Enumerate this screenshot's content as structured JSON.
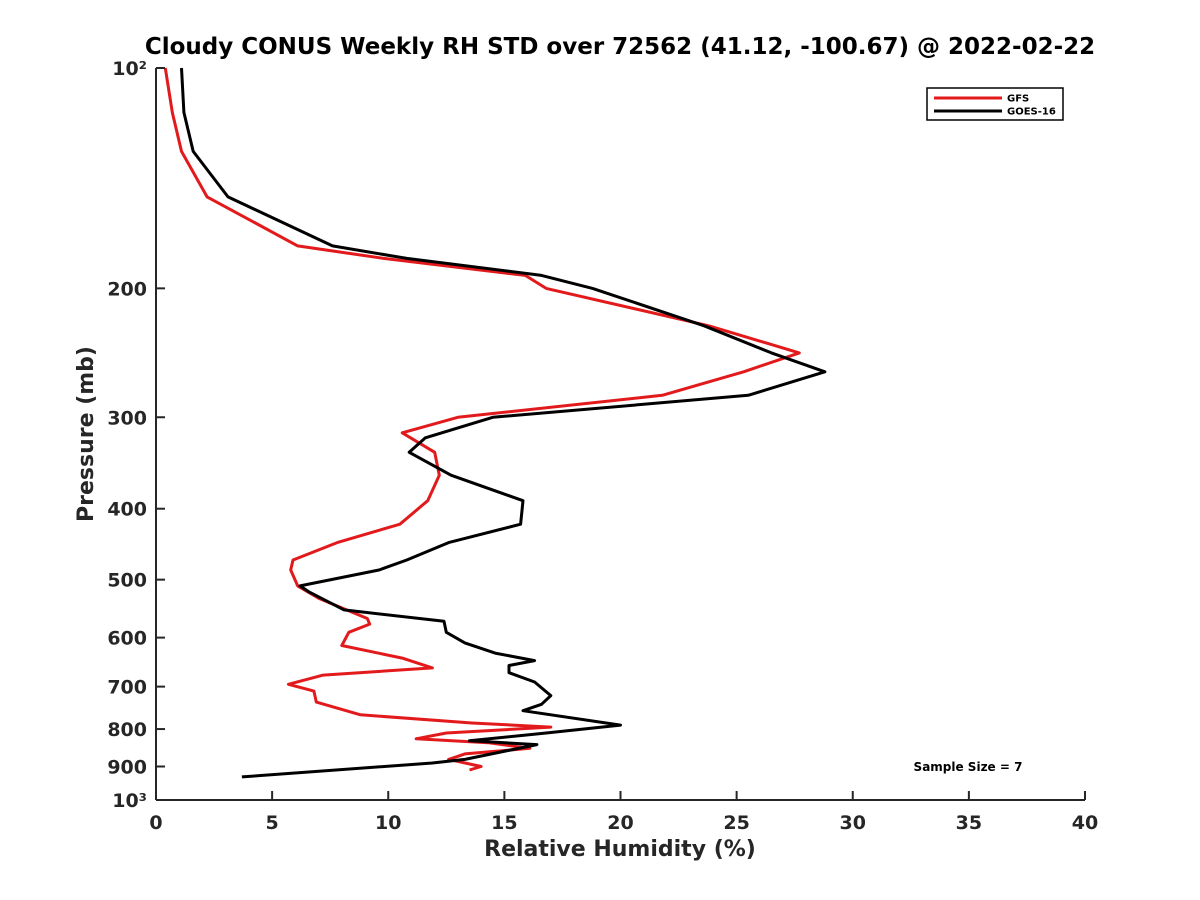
{
  "chart_data": {
    "type": "line",
    "title": "Cloudy CONUS Weekly RH STD over 72562 (41.12, -100.67) @ 2022-02-22",
    "xlabel": "Relative Humidity (%)",
    "ylabel": "Pressure (mb)",
    "xlim": [
      0,
      40
    ],
    "ylim": [
      100,
      1000
    ],
    "y_scale": "log",
    "y_reversed": true,
    "grid": false,
    "legend_position": "top-right",
    "x_ticks": [
      0,
      5,
      10,
      15,
      20,
      25,
      30,
      35,
      40
    ],
    "x_tick_labels": [
      "0",
      "5",
      "10",
      "15",
      "20",
      "25",
      "30",
      "35",
      "40"
    ],
    "y_ticks": [
      100,
      200,
      300,
      400,
      500,
      600,
      700,
      800,
      900,
      1000
    ],
    "y_tick_labels": [
      "10²",
      "200",
      "300",
      "400",
      "500",
      "600",
      "700",
      "800",
      "900",
      "10³"
    ],
    "annotation": "Sample Size = 7",
    "series": [
      {
        "name": "GFS",
        "color": "#e31a1c",
        "points": [
          [
            0.4,
            100
          ],
          [
            0.7,
            115
          ],
          [
            1.1,
            130
          ],
          [
            2.2,
            150
          ],
          [
            6.1,
            175
          ],
          [
            9.8,
            182
          ],
          [
            15.9,
            192
          ],
          [
            16.8,
            200
          ],
          [
            23.8,
            225
          ],
          [
            27.7,
            245
          ],
          [
            25.3,
            260
          ],
          [
            21.8,
            280
          ],
          [
            13.0,
            300
          ],
          [
            10.6,
            315
          ],
          [
            12.0,
            335
          ],
          [
            12.2,
            360
          ],
          [
            11.7,
            390
          ],
          [
            10.5,
            420
          ],
          [
            7.8,
            445
          ],
          [
            5.9,
            470
          ],
          [
            5.8,
            485
          ],
          [
            6.1,
            510
          ],
          [
            7.0,
            530
          ],
          [
            9.1,
            565
          ],
          [
            9.2,
            575
          ],
          [
            8.3,
            590
          ],
          [
            8.0,
            615
          ],
          [
            10.6,
            640
          ],
          [
            11.9,
            660
          ],
          [
            7.2,
            675
          ],
          [
            5.7,
            695
          ],
          [
            6.8,
            710
          ],
          [
            6.9,
            735
          ],
          [
            8.8,
            765
          ],
          [
            13.6,
            785
          ],
          [
            17.0,
            795
          ],
          [
            12.5,
            810
          ],
          [
            11.2,
            825
          ],
          [
            14.3,
            835
          ],
          [
            16.1,
            850
          ],
          [
            13.3,
            865
          ],
          [
            12.6,
            880
          ],
          [
            14.0,
            900
          ],
          [
            13.5,
            910
          ]
        ]
      },
      {
        "name": "GOES-16",
        "color": "#000000",
        "points": [
          [
            1.1,
            100
          ],
          [
            1.2,
            115
          ],
          [
            1.6,
            130
          ],
          [
            3.1,
            150
          ],
          [
            7.6,
            175
          ],
          [
            10.8,
            182
          ],
          [
            16.6,
            192
          ],
          [
            18.8,
            200
          ],
          [
            23.6,
            225
          ],
          [
            26.5,
            245
          ],
          [
            28.8,
            260
          ],
          [
            25.5,
            280
          ],
          [
            14.5,
            300
          ],
          [
            11.6,
            320
          ],
          [
            10.9,
            335
          ],
          [
            12.7,
            360
          ],
          [
            15.8,
            390
          ],
          [
            15.7,
            420
          ],
          [
            12.6,
            445
          ],
          [
            10.8,
            470
          ],
          [
            9.6,
            485
          ],
          [
            6.2,
            510
          ],
          [
            6.6,
            520
          ],
          [
            8.1,
            550
          ],
          [
            12.4,
            570
          ],
          [
            12.5,
            590
          ],
          [
            13.3,
            610
          ],
          [
            14.6,
            630
          ],
          [
            16.3,
            645
          ],
          [
            15.2,
            655
          ],
          [
            15.2,
            670
          ],
          [
            16.3,
            690
          ],
          [
            17.0,
            720
          ],
          [
            16.6,
            740
          ],
          [
            15.8,
            755
          ],
          [
            20.0,
            790
          ],
          [
            16.8,
            810
          ],
          [
            13.5,
            830
          ],
          [
            16.4,
            840
          ],
          [
            13.3,
            880
          ],
          [
            11.9,
            890
          ],
          [
            3.7,
            930
          ]
        ]
      }
    ]
  }
}
